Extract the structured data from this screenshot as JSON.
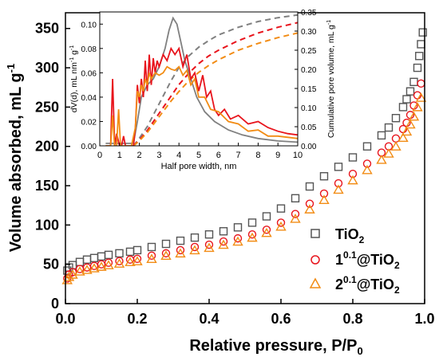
{
  "chart_data": [
    {
      "type": "scatter",
      "title": "",
      "xlabel": "Relative pressure, P/P",
      "xlabel_sub": "0",
      "ylabel": "Volume absorbed, mL g",
      "ylabel_sup": "-1",
      "xlim": [
        0.0,
        1.0
      ],
      "ylim": [
        0,
        370
      ],
      "x_ticks": [
        "0.0",
        "0.2",
        "0.4",
        "0.6",
        "0.8",
        "1.0"
      ],
      "y_ticks": [
        "0",
        "50",
        "100",
        "150",
        "200",
        "250",
        "300",
        "350"
      ],
      "legend_position": "bottom-right",
      "series": [
        {
          "name": "TiO",
          "name_sub": "2",
          "marker": "square",
          "color": "#555555",
          "x": [
            0.005,
            0.01,
            0.02,
            0.04,
            0.06,
            0.08,
            0.1,
            0.12,
            0.15,
            0.18,
            0.2,
            0.24,
            0.28,
            0.32,
            0.36,
            0.4,
            0.44,
            0.48,
            0.52,
            0.56,
            0.6,
            0.64,
            0.68,
            0.72,
            0.76,
            0.8,
            0.84,
            0.88,
            0.9,
            0.92,
            0.94,
            0.95,
            0.96,
            0.97,
            0.98,
            0.985,
            0.99,
            0.995
          ],
          "y": [
            42,
            46,
            49,
            53,
            56,
            58,
            60,
            62,
            64,
            66,
            68,
            72,
            76,
            80,
            84,
            88,
            92,
            97,
            103,
            111,
            121,
            134,
            149,
            162,
            174,
            186,
            200,
            214,
            224,
            236,
            250,
            260,
            270,
            282,
            300,
            315,
            330,
            345
          ]
        },
        {
          "name": "1",
          "name_sup": "0.1",
          "name_suffix": "@TiO",
          "name_suffix_sub": "2",
          "marker": "circle",
          "color": "#e8141c",
          "x": [
            0.005,
            0.01,
            0.02,
            0.04,
            0.06,
            0.08,
            0.1,
            0.12,
            0.15,
            0.18,
            0.2,
            0.24,
            0.28,
            0.32,
            0.36,
            0.4,
            0.44,
            0.48,
            0.52,
            0.56,
            0.6,
            0.64,
            0.68,
            0.72,
            0.76,
            0.8,
            0.84,
            0.88,
            0.9,
            0.92,
            0.94,
            0.95,
            0.96,
            0.97,
            0.98,
            0.99
          ],
          "y": [
            32,
            37,
            40,
            44,
            46,
            48,
            50,
            52,
            54,
            56,
            57,
            61,
            64,
            68,
            72,
            75,
            79,
            83,
            88,
            94,
            103,
            114,
            127,
            140,
            153,
            165,
            178,
            192,
            200,
            210,
            222,
            230,
            240,
            252,
            265,
            280
          ]
        },
        {
          "name": "2",
          "name_sup": "0.1",
          "name_suffix": "@TiO",
          "name_suffix_sub": "2",
          "marker": "triangle",
          "color": "#f28c14",
          "x": [
            0.005,
            0.01,
            0.02,
            0.04,
            0.06,
            0.08,
            0.1,
            0.12,
            0.15,
            0.18,
            0.2,
            0.24,
            0.28,
            0.32,
            0.36,
            0.4,
            0.44,
            0.48,
            0.52,
            0.56,
            0.6,
            0.64,
            0.68,
            0.72,
            0.76,
            0.8,
            0.84,
            0.88,
            0.9,
            0.92,
            0.94,
            0.95,
            0.96,
            0.97,
            0.98,
            0.99
          ],
          "y": [
            30,
            34,
            37,
            41,
            43,
            45,
            47,
            49,
            51,
            53,
            54,
            57,
            61,
            64,
            68,
            71,
            75,
            79,
            84,
            90,
            98,
            108,
            120,
            132,
            145,
            157,
            170,
            183,
            191,
            200,
            211,
            219,
            228,
            238,
            250,
            262
          ]
        }
      ]
    },
    {
      "type": "line",
      "title": "",
      "xlabel": "Half pore width, nm",
      "ylabel_left": "dV(d), mL nm",
      "ylabel_left_sup1": "-1",
      "ylabel_left_mid": " g",
      "ylabel_left_sup2": "-1",
      "ylabel_right": "Cumulative pore volume, mL g",
      "ylabel_right_sup": "-1",
      "xlim": [
        0,
        10
      ],
      "ylim_left": [
        0,
        0.11
      ],
      "ylim_right": [
        0,
        0.35
      ],
      "x_ticks": [
        "0",
        "1",
        "2",
        "3",
        "4",
        "5",
        "6",
        "7",
        "8",
        "9",
        "10"
      ],
      "y_ticks_left": [
        "0.00",
        "0.02",
        "0.04",
        "0.06",
        "0.08",
        "0.10"
      ],
      "y_ticks_right": [
        "0.00",
        "0.05",
        "0.10",
        "0.15",
        "0.20",
        "0.25",
        "0.30",
        "0.35"
      ],
      "series_solid": [
        {
          "color": "#808080",
          "x": [
            0.3,
            1.0,
            1.5,
            1.7,
            1.9,
            2.1,
            2.4,
            2.7,
            3.0,
            3.3,
            3.5,
            3.7,
            3.9,
            4.1,
            4.3,
            4.6,
            4.9,
            5.3,
            5.8,
            6.5,
            7.2,
            8.0,
            9.0,
            10.0
          ],
          "y": [
            0.002,
            0.002,
            0.002,
            0.002,
            0.02,
            0.04,
            0.05,
            0.055,
            0.065,
            0.08,
            0.095,
            0.105,
            0.1,
            0.085,
            0.07,
            0.055,
            0.04,
            0.028,
            0.02,
            0.013,
            0.009,
            0.006,
            0.004,
            0.003
          ]
        },
        {
          "color": "#e8141c",
          "x": [
            0.3,
            0.55,
            0.65,
            0.75,
            0.85,
            1.0,
            1.1,
            1.2,
            1.3,
            1.5,
            1.7,
            1.8,
            1.9,
            2.0,
            2.1,
            2.2,
            2.3,
            2.4,
            2.5,
            2.6,
            2.7,
            2.8,
            2.9,
            3.0,
            3.2,
            3.4,
            3.6,
            3.8,
            4.0,
            4.2,
            4.4,
            4.6,
            4.8,
            5.0,
            5.2,
            5.4,
            5.6,
            5.8,
            6.0,
            6.3,
            6.6,
            7.0,
            7.5,
            8.0,
            8.5,
            9.0,
            9.5,
            10.0
          ],
          "y": [
            0.0,
            0.0,
            0.055,
            0.0,
            0.01,
            0.0,
            0.0,
            0.008,
            0.0,
            0.0,
            0.0,
            0.015,
            0.05,
            0.035,
            0.055,
            0.04,
            0.07,
            0.045,
            0.075,
            0.05,
            0.072,
            0.06,
            0.07,
            0.065,
            0.075,
            0.07,
            0.08,
            0.075,
            0.08,
            0.065,
            0.075,
            0.055,
            0.06,
            0.045,
            0.058,
            0.04,
            0.045,
            0.03,
            0.025,
            0.03,
            0.022,
            0.025,
            0.018,
            0.02,
            0.015,
            0.012,
            0.01,
            0.009
          ]
        },
        {
          "color": "#f28c14",
          "x": [
            0.3,
            0.55,
            0.65,
            0.75,
            0.85,
            0.95,
            1.05,
            1.2,
            1.4,
            1.6,
            1.8,
            1.9,
            2.0,
            2.1,
            2.2,
            2.3,
            2.4,
            2.5,
            2.6,
            2.8,
            3.0,
            3.2,
            3.4,
            3.6,
            3.8,
            4.0,
            4.2,
            4.4,
            4.6,
            4.8,
            5.0,
            5.3,
            5.6,
            6.0,
            6.5,
            7.0,
            7.5,
            8.0,
            8.5,
            9.0,
            10.0
          ],
          "y": [
            0.0,
            0.0,
            0.025,
            0.0,
            0.0,
            0.03,
            0.0,
            0.0,
            0.0,
            0.0,
            0.015,
            0.045,
            0.04,
            0.05,
            0.045,
            0.055,
            0.05,
            0.06,
            0.055,
            0.06,
            0.058,
            0.06,
            0.065,
            0.063,
            0.062,
            0.065,
            0.058,
            0.062,
            0.05,
            0.055,
            0.04,
            0.04,
            0.03,
            0.028,
            0.02,
            0.018,
            0.012,
            0.013,
            0.008,
            0.008,
            0.006
          ]
        }
      ],
      "series_dashed": [
        {
          "color": "#808080",
          "x": [
            1.7,
            2.0,
            2.4,
            2.8,
            3.2,
            3.6,
            4.0,
            4.5,
            5.0,
            5.5,
            6.0,
            7.0,
            8.0,
            9.0,
            10.0
          ],
          "y": [
            0.0,
            0.02,
            0.05,
            0.09,
            0.13,
            0.17,
            0.205,
            0.235,
            0.258,
            0.275,
            0.29,
            0.31,
            0.325,
            0.335,
            0.342
          ]
        },
        {
          "color": "#e8141c",
          "x": [
            1.7,
            2.0,
            2.4,
            2.8,
            3.2,
            3.6,
            4.0,
            4.5,
            5.0,
            5.5,
            6.0,
            7.0,
            8.0,
            9.0,
            10.0
          ],
          "y": [
            0.0,
            0.015,
            0.04,
            0.07,
            0.1,
            0.13,
            0.16,
            0.19,
            0.215,
            0.235,
            0.25,
            0.275,
            0.295,
            0.31,
            0.322
          ]
        },
        {
          "color": "#f28c14",
          "x": [
            1.7,
            2.0,
            2.4,
            2.8,
            3.2,
            3.6,
            4.0,
            4.5,
            5.0,
            5.5,
            6.0,
            7.0,
            8.0,
            9.0,
            10.0
          ],
          "y": [
            0.0,
            0.013,
            0.035,
            0.062,
            0.09,
            0.117,
            0.142,
            0.17,
            0.192,
            0.21,
            0.225,
            0.25,
            0.268,
            0.283,
            0.295
          ]
        }
      ]
    }
  ]
}
